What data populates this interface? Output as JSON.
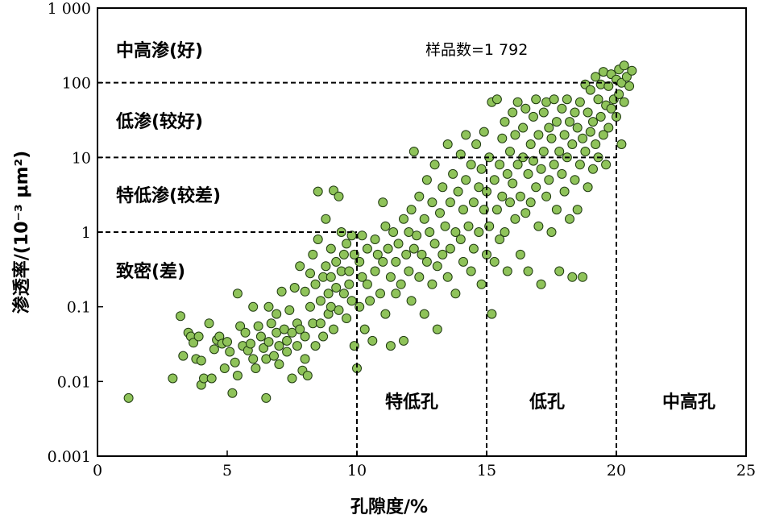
{
  "chart_data": {
    "type": "scatter",
    "xlabel": "孔隙度/%",
    "ylabel": "渗透率/(10⁻³ μm²)",
    "xlim": [
      0,
      25
    ],
    "ylim": [
      0.001,
      1000
    ],
    "y_scale": "log",
    "x_ticks": [
      "0",
      "5",
      "10",
      "15",
      "20",
      "25"
    ],
    "y_ticks": [
      "0.001",
      "0.01",
      "0.1",
      "1",
      "10",
      "100",
      "1 000"
    ],
    "sample_count_label": "样品数=1 792",
    "permeability_zones": [
      {
        "label": "中高渗(好)",
        "min": 100
      },
      {
        "label": "低渗(较好)",
        "min": 10,
        "max": 100
      },
      {
        "label": "特低渗(较差)",
        "min": 1,
        "max": 10
      },
      {
        "label": "致密(差)",
        "max": 1
      }
    ],
    "porosity_zones": [
      {
        "label": "特低孔",
        "min": 10,
        "max": 15
      },
      {
        "label": "低孔",
        "min": 15,
        "max": 20
      },
      {
        "label": "中高孔",
        "min": 20
      }
    ],
    "threshold_lines": {
      "horizontal": [
        {
          "y": 100,
          "x_end": 20
        },
        {
          "y": 10,
          "x_end": 20
        },
        {
          "y": 1,
          "x_end": 10
        }
      ],
      "vertical": [
        {
          "x": 10,
          "y_end": 1
        },
        {
          "x": 15,
          "y_end": 10
        },
        {
          "x": 20,
          "y_end": 100
        }
      ]
    },
    "colors": {
      "marker_fill": "#8fc35a",
      "marker_edge": "#1f3a10"
    },
    "points": [
      [
        1.2,
        0.006
      ],
      [
        2.9,
        0.011
      ],
      [
        3.2,
        0.075
      ],
      [
        3.3,
        0.022
      ],
      [
        3.5,
        0.045
      ],
      [
        3.6,
        0.04
      ],
      [
        3.7,
        0.033
      ],
      [
        3.8,
        0.02
      ],
      [
        3.9,
        0.04
      ],
      [
        4.0,
        0.019
      ],
      [
        4.0,
        0.009
      ],
      [
        4.1,
        0.011
      ],
      [
        4.3,
        0.06
      ],
      [
        4.4,
        0.011
      ],
      [
        4.5,
        0.027
      ],
      [
        4.6,
        0.036
      ],
      [
        4.7,
        0.04
      ],
      [
        4.8,
        0.032
      ],
      [
        4.9,
        0.015
      ],
      [
        5.0,
        0.034
      ],
      [
        5.1,
        0.025
      ],
      [
        5.2,
        0.007
      ],
      [
        5.3,
        0.018
      ],
      [
        5.4,
        0.15
      ],
      [
        5.4,
        0.012
      ],
      [
        5.5,
        0.055
      ],
      [
        5.6,
        0.03
      ],
      [
        5.7,
        0.045
      ],
      [
        5.8,
        0.026
      ],
      [
        5.9,
        0.032
      ],
      [
        6.0,
        0.1
      ],
      [
        6.0,
        0.02
      ],
      [
        6.1,
        0.015
      ],
      [
        6.2,
        0.055
      ],
      [
        6.3,
        0.04
      ],
      [
        6.4,
        0.028
      ],
      [
        6.5,
        0.02
      ],
      [
        6.5,
        0.006
      ],
      [
        6.6,
        0.1
      ],
      [
        6.6,
        0.034
      ],
      [
        6.7,
        0.06
      ],
      [
        6.8,
        0.022
      ],
      [
        6.9,
        0.08
      ],
      [
        6.9,
        0.045
      ],
      [
        7.0,
        0.03
      ],
      [
        7.0,
        0.017
      ],
      [
        7.1,
        0.16
      ],
      [
        7.2,
        0.05
      ],
      [
        7.3,
        0.035
      ],
      [
        7.3,
        0.025
      ],
      [
        7.4,
        0.09
      ],
      [
        7.5,
        0.045
      ],
      [
        7.5,
        0.011
      ],
      [
        7.6,
        0.18
      ],
      [
        7.7,
        0.06
      ],
      [
        7.7,
        0.03
      ],
      [
        7.8,
        0.35
      ],
      [
        7.8,
        0.05
      ],
      [
        7.9,
        0.014
      ],
      [
        8.0,
        0.16
      ],
      [
        8.0,
        0.04
      ],
      [
        8.0,
        0.02
      ],
      [
        8.1,
        0.012
      ],
      [
        8.2,
        0.28
      ],
      [
        8.2,
        0.1
      ],
      [
        8.3,
        0.06
      ],
      [
        8.3,
        0.5
      ],
      [
        8.4,
        0.2
      ],
      [
        8.4,
        0.03
      ],
      [
        8.5,
        3.5
      ],
      [
        8.5,
        0.8
      ],
      [
        8.6,
        0.12
      ],
      [
        8.6,
        0.06
      ],
      [
        8.7,
        0.25
      ],
      [
        8.7,
        0.04
      ],
      [
        8.8,
        1.5
      ],
      [
        8.8,
        0.35
      ],
      [
        8.9,
        0.15
      ],
      [
        8.9,
        0.08
      ],
      [
        9.0,
        0.6
      ],
      [
        9.0,
        0.25
      ],
      [
        9.0,
        0.1
      ],
      [
        9.1,
        3.6
      ],
      [
        9.1,
        0.05
      ],
      [
        9.2,
        0.4
      ],
      [
        9.2,
        0.18
      ],
      [
        9.3,
        3.0
      ],
      [
        9.3,
        0.09
      ],
      [
        9.4,
        1.0
      ],
      [
        9.4,
        0.3
      ],
      [
        9.5,
        0.5
      ],
      [
        9.5,
        0.15
      ],
      [
        9.6,
        0.7
      ],
      [
        9.6,
        0.07
      ],
      [
        9.7,
        0.3
      ],
      [
        9.7,
        0.2
      ],
      [
        9.8,
        0.9
      ],
      [
        9.8,
        0.12
      ],
      [
        9.9,
        0.5
      ],
      [
        9.9,
        0.03
      ],
      [
        10.0,
        0.015
      ],
      [
        10.1,
        0.4
      ],
      [
        10.1,
        0.1
      ],
      [
        10.2,
        0.9
      ],
      [
        10.2,
        0.25
      ],
      [
        10.3,
        0.05
      ],
      [
        10.4,
        0.6
      ],
      [
        10.4,
        0.2
      ],
      [
        10.5,
        0.12
      ],
      [
        10.6,
        0.035
      ],
      [
        10.7,
        0.8
      ],
      [
        10.7,
        0.3
      ],
      [
        10.8,
        0.5
      ],
      [
        10.9,
        0.15
      ],
      [
        11.0,
        2.5
      ],
      [
        11.0,
        0.4
      ],
      [
        11.1,
        1.2
      ],
      [
        11.1,
        0.08
      ],
      [
        11.2,
        0.6
      ],
      [
        11.3,
        0.25
      ],
      [
        11.3,
        0.03
      ],
      [
        11.4,
        1.0
      ],
      [
        11.5,
        0.4
      ],
      [
        11.5,
        0.15
      ],
      [
        11.6,
        0.7
      ],
      [
        11.7,
        0.2
      ],
      [
        11.8,
        1.5
      ],
      [
        11.8,
        0.035
      ],
      [
        11.9,
        0.5
      ],
      [
        12.0,
        1.0
      ],
      [
        12.0,
        0.3
      ],
      [
        12.1,
        2.0
      ],
      [
        12.1,
        0.12
      ],
      [
        12.2,
        12.0
      ],
      [
        12.2,
        0.6
      ],
      [
        12.3,
        0.9
      ],
      [
        12.4,
        0.25
      ],
      [
        12.4,
        3.0
      ],
      [
        12.5,
        0.5
      ],
      [
        12.6,
        1.5
      ],
      [
        12.6,
        0.08
      ],
      [
        12.7,
        5.0
      ],
      [
        12.7,
        0.4
      ],
      [
        12.8,
        1.0
      ],
      [
        12.9,
        0.2
      ],
      [
        12.9,
        2.5
      ],
      [
        13.0,
        0.7
      ],
      [
        13.0,
        8.0
      ],
      [
        13.1,
        0.35
      ],
      [
        13.1,
        0.05
      ],
      [
        13.2,
        1.8
      ],
      [
        13.3,
        0.5
      ],
      [
        13.3,
        4.0
      ],
      [
        13.4,
        1.2
      ],
      [
        13.5,
        0.25
      ],
      [
        13.5,
        15.0
      ],
      [
        13.6,
        2.5
      ],
      [
        13.6,
        0.6
      ],
      [
        13.7,
        6.0
      ],
      [
        13.8,
        1.0
      ],
      [
        13.8,
        0.15
      ],
      [
        13.9,
        3.5
      ],
      [
        14.0,
        0.8
      ],
      [
        14.0,
        11.0
      ],
      [
        14.1,
        2.0
      ],
      [
        14.1,
        0.4
      ],
      [
        14.2,
        20.0
      ],
      [
        14.2,
        5.0
      ],
      [
        14.3,
        1.2
      ],
      [
        14.4,
        0.3
      ],
      [
        14.4,
        8.0
      ],
      [
        14.5,
        2.5
      ],
      [
        14.5,
        0.6
      ],
      [
        14.6,
        15.0
      ],
      [
        14.7,
        4.0
      ],
      [
        14.7,
        1.0
      ],
      [
        14.8,
        0.2
      ],
      [
        14.8,
        7.0
      ],
      [
        14.9,
        2.0
      ],
      [
        14.9,
        22.0
      ],
      [
        15.0,
        0.5
      ],
      [
        15.0,
        3.5
      ],
      [
        15.1,
        10.0
      ],
      [
        15.1,
        1.2
      ],
      [
        15.2,
        0.08
      ],
      [
        15.2,
        55.0
      ],
      [
        15.3,
        5.0
      ],
      [
        15.3,
        0.4
      ],
      [
        15.4,
        60.0
      ],
      [
        15.4,
        2.0
      ],
      [
        15.5,
        8.0
      ],
      [
        15.5,
        0.8
      ],
      [
        15.6,
        18.0
      ],
      [
        15.6,
        3.0
      ],
      [
        15.7,
        1.0
      ],
      [
        15.7,
        30.0
      ],
      [
        15.8,
        6.0
      ],
      [
        15.8,
        0.3
      ],
      [
        15.9,
        12.0
      ],
      [
        15.9,
        2.5
      ],
      [
        16.0,
        40.0
      ],
      [
        16.0,
        4.5
      ],
      [
        16.1,
        1.5
      ],
      [
        16.1,
        20.0
      ],
      [
        16.2,
        55.0
      ],
      [
        16.2,
        8.0
      ],
      [
        16.3,
        0.5
      ],
      [
        16.3,
        3.0
      ],
      [
        16.4,
        25.0
      ],
      [
        16.4,
        10.0
      ],
      [
        16.5,
        1.8
      ],
      [
        16.5,
        45.0
      ],
      [
        16.6,
        6.0
      ],
      [
        16.6,
        0.3
      ],
      [
        16.7,
        15.0
      ],
      [
        16.7,
        2.5
      ],
      [
        16.8,
        35.0
      ],
      [
        16.8,
        9.0
      ],
      [
        16.9,
        4.0
      ],
      [
        16.9,
        60.0
      ],
      [
        17.0,
        1.2
      ],
      [
        17.0,
        20.0
      ],
      [
        17.1,
        7.0
      ],
      [
        17.1,
        0.2
      ],
      [
        17.2,
        40.0
      ],
      [
        17.2,
        12.0
      ],
      [
        17.3,
        3.0
      ],
      [
        17.3,
        55.0
      ],
      [
        17.4,
        25.0
      ],
      [
        17.4,
        5.0
      ],
      [
        17.5,
        1.0
      ],
      [
        17.5,
        18.0
      ],
      [
        17.6,
        60.0
      ],
      [
        17.6,
        8.0
      ],
      [
        17.7,
        30.0
      ],
      [
        17.7,
        2.0
      ],
      [
        17.8,
        12.0
      ],
      [
        17.8,
        0.3
      ],
      [
        17.9,
        45.0
      ],
      [
        17.9,
        6.0
      ],
      [
        18.0,
        20.0
      ],
      [
        18.0,
        3.5
      ],
      [
        18.1,
        60.0
      ],
      [
        18.1,
        10.0
      ],
      [
        18.2,
        1.5
      ],
      [
        18.2,
        30.0
      ],
      [
        18.3,
        15.0
      ],
      [
        18.3,
        0.25
      ],
      [
        18.4,
        40.0
      ],
      [
        18.4,
        5.0
      ],
      [
        18.5,
        25.0
      ],
      [
        18.5,
        2.0
      ],
      [
        18.6,
        55.0
      ],
      [
        18.6,
        8.0
      ],
      [
        18.7,
        0.25
      ],
      [
        18.7,
        18.0
      ],
      [
        18.8,
        95.0
      ],
      [
        18.8,
        12.0
      ],
      [
        18.9,
        4.0
      ],
      [
        18.9,
        40.0
      ],
      [
        19.0,
        22.0
      ],
      [
        19.0,
        80.0
      ],
      [
        19.1,
        7.0
      ],
      [
        19.1,
        30.0
      ],
      [
        19.2,
        120.0
      ],
      [
        19.2,
        15.0
      ],
      [
        19.3,
        60.0
      ],
      [
        19.3,
        10.0
      ],
      [
        19.4,
        35.0
      ],
      [
        19.4,
        95.0
      ],
      [
        19.5,
        140.0
      ],
      [
        19.5,
        20.0
      ],
      [
        19.6,
        50.0
      ],
      [
        19.6,
        8.0
      ],
      [
        19.7,
        90.0
      ],
      [
        19.7,
        25.0
      ],
      [
        19.8,
        130.0
      ],
      [
        19.8,
        45.0
      ],
      [
        19.9,
        60.0
      ],
      [
        20.0,
        110.0
      ],
      [
        20.0,
        35.0
      ],
      [
        20.1,
        150.0
      ],
      [
        20.1,
        70.0
      ],
      [
        20.2,
        100.0
      ],
      [
        20.2,
        15.0
      ],
      [
        20.3,
        170.0
      ],
      [
        20.3,
        55.0
      ],
      [
        20.4,
        120.0
      ],
      [
        20.5,
        90.0
      ],
      [
        20.6,
        145.0
      ]
    ]
  }
}
